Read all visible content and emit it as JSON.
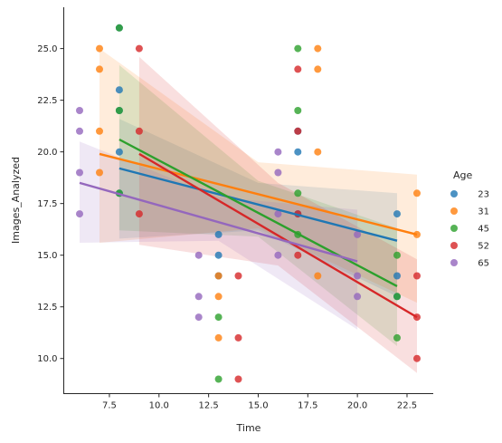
{
  "chart_data": {
    "type": "scatter",
    "xlabel": "Time",
    "ylabel": "Images_Analyzed",
    "xlim": [
      5.2,
      23.8
    ],
    "ylim": [
      8.3,
      27.0
    ],
    "xticks": [
      7.5,
      10.0,
      12.5,
      15.0,
      17.5,
      20.0,
      22.5
    ],
    "xtick_labels": [
      "7.5",
      "10.0",
      "12.5",
      "15.0",
      "17.5",
      "20.0",
      "22.5"
    ],
    "yticks": [
      10.0,
      12.5,
      15.0,
      17.5,
      20.0,
      22.5,
      25.0
    ],
    "ytick_labels": [
      "10.0",
      "12.5",
      "15.0",
      "17.5",
      "20.0",
      "22.5",
      "25.0"
    ],
    "grid": false,
    "legend": {
      "title": "Age",
      "placement": "right"
    },
    "series": [
      {
        "name": "23",
        "color": "#1f77b4",
        "points": [
          [
            8,
            26
          ],
          [
            8,
            23
          ],
          [
            8,
            22
          ],
          [
            8,
            20
          ],
          [
            8,
            18
          ],
          [
            13,
            16
          ],
          [
            13,
            15
          ],
          [
            13,
            14
          ],
          [
            17,
            21
          ],
          [
            17,
            20
          ],
          [
            17,
            17
          ],
          [
            22,
            17
          ],
          [
            22,
            14
          ],
          [
            22,
            13
          ]
        ],
        "trend": {
          "x": [
            8,
            22
          ],
          "y": [
            19.2,
            15.7
          ]
        },
        "band": {
          "x": [
            8,
            15,
            22
          ],
          "upper": [
            21.6,
            18.5,
            18.0
          ],
          "lower": [
            15.8,
            16.2,
            13.0
          ]
        }
      },
      {
        "name": "31",
        "color": "#ff7f0e",
        "points": [
          [
            7,
            25
          ],
          [
            7,
            24
          ],
          [
            7,
            21
          ],
          [
            7,
            19
          ],
          [
            13,
            14
          ],
          [
            13,
            13
          ],
          [
            13,
            11
          ],
          [
            18,
            25
          ],
          [
            18,
            24
          ],
          [
            18,
            20
          ],
          [
            18,
            14
          ],
          [
            23,
            18
          ],
          [
            23,
            16
          ]
        ],
        "trend": {
          "x": [
            7,
            23
          ],
          "y": [
            19.9,
            16.0
          ]
        },
        "band": {
          "x": [
            7,
            15,
            23
          ],
          "upper": [
            25.0,
            19.5,
            18.9
          ],
          "lower": [
            15.6,
            16.3,
            12.7
          ]
        }
      },
      {
        "name": "45",
        "color": "#2ca02c",
        "points": [
          [
            8,
            26
          ],
          [
            8,
            22
          ],
          [
            8,
            18
          ],
          [
            13,
            12
          ],
          [
            13,
            9
          ],
          [
            17,
            25
          ],
          [
            17,
            22
          ],
          [
            17,
            18
          ],
          [
            17,
            16
          ],
          [
            22,
            15
          ],
          [
            22,
            13
          ],
          [
            22,
            11
          ]
        ],
        "trend": {
          "x": [
            8,
            22
          ],
          "y": [
            20.6,
            13.5
          ]
        },
        "band": {
          "x": [
            8,
            15,
            22
          ],
          "upper": [
            24.2,
            18.6,
            16.3
          ],
          "lower": [
            16.2,
            15.9,
            10.6
          ]
        }
      },
      {
        "name": "52",
        "color": "#d62728",
        "points": [
          [
            9,
            25
          ],
          [
            9,
            21
          ],
          [
            9,
            17
          ],
          [
            14,
            14
          ],
          [
            14,
            11
          ],
          [
            14,
            9
          ],
          [
            17,
            24
          ],
          [
            17,
            21
          ],
          [
            17,
            17
          ],
          [
            17,
            15
          ],
          [
            23,
            14
          ],
          [
            23,
            12
          ],
          [
            23,
            10
          ]
        ],
        "trend": {
          "x": [
            9,
            23
          ],
          "y": [
            19.9,
            12.0
          ]
        },
        "band": {
          "x": [
            9,
            16,
            23
          ],
          "upper": [
            24.6,
            18.5,
            14.8
          ],
          "lower": [
            15.5,
            14.5,
            9.3
          ]
        }
      },
      {
        "name": "65",
        "color": "#9467bd",
        "points": [
          [
            6,
            22
          ],
          [
            6,
            21
          ],
          [
            6,
            19
          ],
          [
            6,
            17
          ],
          [
            12,
            15
          ],
          [
            12,
            13
          ],
          [
            12,
            12
          ],
          [
            16,
            20
          ],
          [
            16,
            19
          ],
          [
            16,
            17
          ],
          [
            16,
            15
          ],
          [
            20,
            16
          ],
          [
            20,
            14
          ],
          [
            20,
            13
          ]
        ],
        "trend": {
          "x": [
            6,
            20
          ],
          "y": [
            18.5,
            14.7
          ]
        },
        "band": {
          "x": [
            6,
            13,
            20
          ],
          "upper": [
            20.5,
            17.8,
            17.2
          ],
          "lower": [
            15.6,
            15.7,
            11.4
          ]
        }
      }
    ]
  }
}
